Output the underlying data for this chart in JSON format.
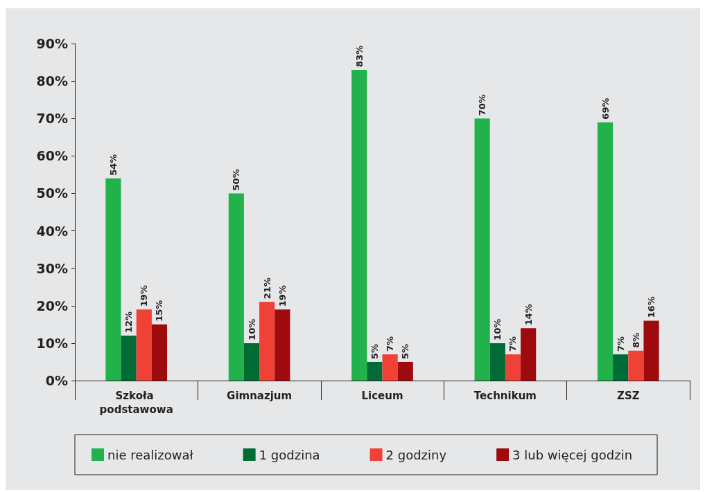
{
  "chart_data": {
    "type": "bar",
    "categories": [
      "Szkoła podstawowa",
      "Gimnazjum",
      "Liceum",
      "Technikum",
      "ZSZ"
    ],
    "series": [
      {
        "name": "nie realizował",
        "color": "#22b24c",
        "values": [
          54,
          50,
          83,
          70,
          69
        ],
        "value_labels": [
          "54%",
          "50%",
          "83%",
          "70%",
          "69%"
        ]
      },
      {
        "name": "1 godzina",
        "color": "#006b35",
        "values": [
          12,
          10,
          5,
          10,
          7
        ],
        "value_labels": [
          "12%",
          "10%",
          "5%",
          "10%",
          "7%"
        ]
      },
      {
        "name": "2 godziny",
        "color": "#ef4136",
        "values": [
          19,
          21,
          7,
          7,
          8
        ],
        "value_labels": [
          "19%",
          "21%",
          "7%",
          "7%",
          "8%"
        ]
      },
      {
        "name": "3 lub więcej godzin",
        "color": "#9e0b0f",
        "values": [
          15,
          19,
          5,
          14,
          16
        ],
        "value_labels": [
          "15%",
          "19%",
          "5%",
          "14%",
          "16%"
        ]
      }
    ],
    "ylim": [
      0,
      90
    ],
    "yticks": [
      {
        "value": 0,
        "label": "0%"
      },
      {
        "value": 10,
        "label": "10%"
      },
      {
        "value": 20,
        "label": "20%"
      },
      {
        "value": 30,
        "label": "30%"
      },
      {
        "value": 40,
        "label": "40%"
      },
      {
        "value": 50,
        "label": "50%"
      },
      {
        "value": 60,
        "label": "60%"
      },
      {
        "value": 70,
        "label": "70%"
      },
      {
        "value": 80,
        "label": "80%"
      },
      {
        "value": 90,
        "label": "90%"
      }
    ],
    "grid": false,
    "legend": "bottom"
  }
}
